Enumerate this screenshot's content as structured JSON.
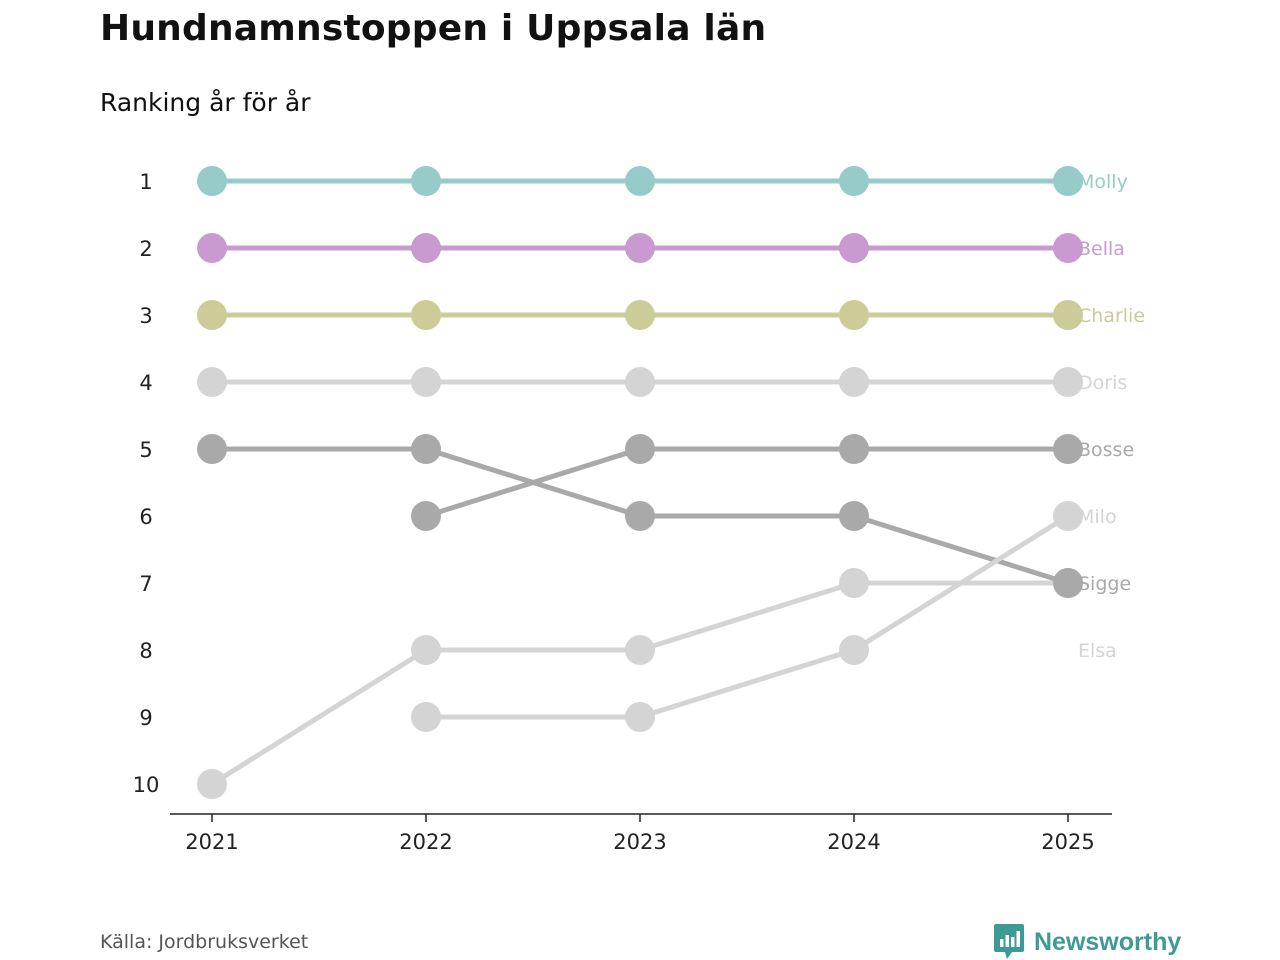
{
  "chart_data": {
    "type": "line",
    "title": "Hundnamnstoppen i Uppsala län",
    "subtitle": "Ranking år för år",
    "x": [
      "2021",
      "2022",
      "2023",
      "2024",
      "2025"
    ],
    "y_ticks": [
      "1",
      "2",
      "3",
      "4",
      "5",
      "6",
      "7",
      "8",
      "9",
      "10"
    ],
    "ylim": [
      1,
      10
    ],
    "y_inverted": true,
    "xlabel": "",
    "ylabel": "",
    "series": [
      {
        "name": "Molly",
        "color": "#96cbc9",
        "values": [
          1,
          1,
          1,
          1,
          1
        ]
      },
      {
        "name": "Bella",
        "color": "#c99ad0",
        "values": [
          2,
          2,
          2,
          2,
          2
        ]
      },
      {
        "name": "Charlie",
        "color": "#cccc99",
        "values": [
          3,
          3,
          3,
          3,
          3
        ]
      },
      {
        "name": "Doris",
        "color": "#d4d4d4",
        "values": [
          4,
          4,
          4,
          4,
          4
        ]
      },
      {
        "name": "Bosse",
        "color": "#a9a9a9",
        "values": [
          null,
          6,
          5,
          5,
          5
        ]
      },
      {
        "name": "Milo",
        "color": "#d4d4d4",
        "values": [
          null,
          9,
          9,
          8,
          6
        ]
      },
      {
        "name": "Sigge",
        "color": "#a9a9a9",
        "values": [
          5,
          5,
          6,
          6,
          7
        ]
      },
      {
        "name": "Elsa",
        "color": "#d4d4d4",
        "values": [
          10,
          8,
          8,
          7,
          7
        ]
      }
    ]
  },
  "footer": {
    "source": "Källa: Jordbruksverket",
    "brand": "Newsworthy",
    "brand_color": "#3d9a94"
  }
}
